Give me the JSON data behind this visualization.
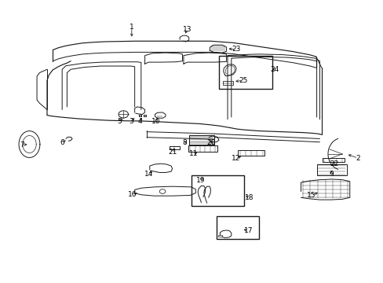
{
  "background_color": "#ffffff",
  "line_color": "#1a1a1a",
  "text_color": "#000000",
  "figsize": [
    4.89,
    3.6
  ],
  "dpi": 100,
  "label_data": {
    "1": {
      "lpos": [
        0.345,
        0.895
      ],
      "ppos": [
        0.345,
        0.87
      ]
    },
    "2": {
      "lpos": [
        0.94,
        0.44
      ],
      "ppos": [
        0.915,
        0.455
      ]
    },
    "3": {
      "lpos": [
        0.34,
        0.57
      ],
      "ppos": [
        0.355,
        0.59
      ]
    },
    "4": {
      "lpos": [
        0.36,
        0.568
      ],
      "ppos": [
        0.37,
        0.59
      ]
    },
    "5": {
      "lpos": [
        0.305,
        0.568
      ],
      "ppos": [
        0.32,
        0.59
      ]
    },
    "6": {
      "lpos": [
        0.165,
        0.498
      ],
      "ppos": [
        0.178,
        0.51
      ]
    },
    "7": {
      "lpos": [
        0.052,
        0.49
      ],
      "ppos": [
        0.075,
        0.49
      ]
    },
    "8": {
      "lpos": [
        0.49,
        0.498
      ],
      "ppos": [
        0.505,
        0.498
      ]
    },
    "9": {
      "lpos": [
        0.872,
        0.388
      ],
      "ppos": [
        0.872,
        0.4
      ]
    },
    "10": {
      "lpos": [
        0.4,
        0.568
      ],
      "ppos": [
        0.405,
        0.59
      ]
    },
    "11": {
      "lpos": [
        0.51,
        0.458
      ],
      "ppos": [
        0.52,
        0.464
      ]
    },
    "12": {
      "lpos": [
        0.62,
        0.44
      ],
      "ppos": [
        0.64,
        0.445
      ]
    },
    "13": {
      "lpos": [
        0.49,
        0.9
      ],
      "ppos": [
        0.49,
        0.882
      ]
    },
    "14": {
      "lpos": [
        0.39,
        0.388
      ],
      "ppos": [
        0.408,
        0.395
      ]
    },
    "15": {
      "lpos": [
        0.82,
        0.31
      ],
      "ppos": [
        0.84,
        0.33
      ]
    },
    "16": {
      "lpos": [
        0.35,
        0.312
      ],
      "ppos": [
        0.37,
        0.312
      ]
    },
    "17": {
      "lpos": [
        0.652,
        0.178
      ],
      "ppos": [
        0.635,
        0.188
      ]
    },
    "18": {
      "lpos": [
        0.662,
        0.298
      ],
      "ppos": [
        0.64,
        0.31
      ]
    },
    "19": {
      "lpos": [
        0.528,
        0.36
      ],
      "ppos": [
        0.528,
        0.37
      ]
    },
    "20": {
      "lpos": [
        0.555,
        0.498
      ],
      "ppos": [
        0.555,
        0.508
      ]
    },
    "21": {
      "lpos": [
        0.452,
        0.468
      ],
      "ppos": [
        0.452,
        0.478
      ]
    },
    "22": {
      "lpos": [
        0.88,
        0.42
      ],
      "ppos": [
        0.88,
        0.43
      ]
    },
    "23": {
      "lpos": [
        0.62,
        0.83
      ],
      "ppos": [
        0.6,
        0.83
      ]
    },
    "24": {
      "lpos": [
        0.7,
        0.758
      ],
      "ppos": [
        0.678,
        0.758
      ]
    },
    "25": {
      "lpos": [
        0.638,
        0.718
      ],
      "ppos": [
        0.62,
        0.718
      ]
    }
  }
}
